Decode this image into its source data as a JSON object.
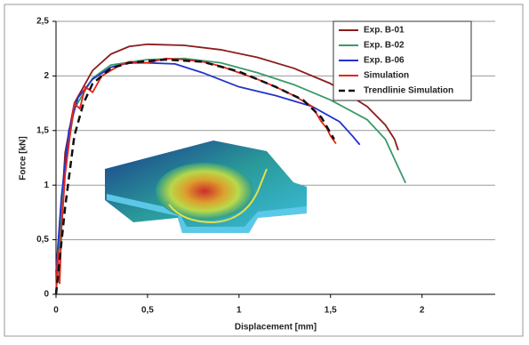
{
  "chart_data": {
    "type": "line",
    "x_label": "Displacement [mm]",
    "y_label": "Force [kN]",
    "xlim": [
      0,
      2.4
    ],
    "ylim": [
      0,
      2.5
    ],
    "xticks": [
      0,
      {
        "value": 0.5,
        "label": "0,5"
      },
      1,
      {
        "value": 1.5,
        "label": "1,5"
      },
      2
    ],
    "yticks": [
      0,
      {
        "value": 0.5,
        "label": "0,5"
      },
      1,
      {
        "value": 1.5,
        "label": "1,5"
      },
      2,
      {
        "value": 2.5,
        "label": "2,5"
      }
    ],
    "grid": true,
    "legend": "top-right",
    "series": [
      {
        "name": "Exp. B-01",
        "color": "#8b1c1c",
        "dashed": false,
        "x": [
          0,
          0.05,
          0.1,
          0.2,
          0.3,
          0.4,
          0.5,
          0.7,
          0.9,
          1.1,
          1.3,
          1.5,
          1.7,
          1.8,
          1.85,
          1.87
        ],
        "values": [
          0,
          1.3,
          1.75,
          2.05,
          2.2,
          2.27,
          2.29,
          2.28,
          2.24,
          2.17,
          2.07,
          1.93,
          1.72,
          1.55,
          1.42,
          1.32
        ]
      },
      {
        "name": "Exp. B-02",
        "color": "#3a9a6a",
        "dashed": false,
        "x": [
          0,
          0.05,
          0.1,
          0.2,
          0.3,
          0.5,
          0.7,
          0.9,
          1.1,
          1.3,
          1.5,
          1.7,
          1.8,
          1.86,
          1.91
        ],
        "values": [
          0,
          1.2,
          1.7,
          1.98,
          2.1,
          2.15,
          2.16,
          2.12,
          2.03,
          1.92,
          1.78,
          1.6,
          1.42,
          1.2,
          1.02
        ]
      },
      {
        "name": "Exp. B-06",
        "color": "#2233cc",
        "dashed": false,
        "x": [
          0,
          0.03,
          0.07,
          0.12,
          0.2,
          0.3,
          0.4,
          0.5,
          0.65,
          0.8,
          1.0,
          1.2,
          1.4,
          1.55,
          1.62,
          1.66
        ],
        "values": [
          0.2,
          0.9,
          1.5,
          1.8,
          1.97,
          2.08,
          2.12,
          2.12,
          2.11,
          2.03,
          1.9,
          1.82,
          1.72,
          1.58,
          1.45,
          1.37
        ]
      },
      {
        "name": "Simulation",
        "color": "#e8231a",
        "dashed": false,
        "x": [
          0,
          0.01,
          0.02,
          0.03,
          0.05,
          0.08,
          0.1,
          0.13,
          0.16,
          0.2,
          0.25,
          0.3,
          0.35,
          0.4,
          0.5,
          0.6,
          0.7,
          0.8,
          0.9,
          1.0,
          1.1,
          1.2,
          1.3,
          1.4,
          1.45,
          1.48,
          1.5,
          1.53
        ],
        "values": [
          0,
          0.4,
          0.1,
          0.6,
          1.1,
          1.5,
          1.75,
          1.7,
          1.9,
          1.85,
          2.0,
          2.05,
          2.1,
          2.13,
          2.12,
          2.16,
          2.15,
          2.13,
          2.09,
          2.03,
          1.97,
          1.9,
          1.82,
          1.72,
          1.58,
          1.52,
          1.45,
          1.38
        ]
      },
      {
        "name": "Trendlinie Simulation",
        "color": "#111111",
        "dashed": true,
        "x": [
          0,
          0.05,
          0.1,
          0.15,
          0.2,
          0.3,
          0.4,
          0.6,
          0.8,
          1.0,
          1.2,
          1.35,
          1.45,
          1.52
        ],
        "values": [
          0,
          0.8,
          1.45,
          1.75,
          1.93,
          2.07,
          2.12,
          2.15,
          2.13,
          2.04,
          1.9,
          1.78,
          1.62,
          1.42
        ]
      }
    ]
  }
}
